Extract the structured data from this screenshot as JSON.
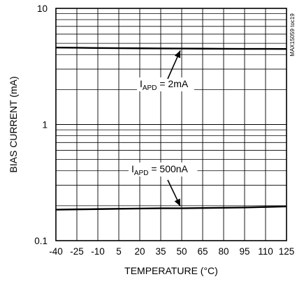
{
  "chart_data": {
    "type": "line",
    "title": "",
    "xlabel": "TEMPERATURE (°C)",
    "ylabel": "BIAS CURRENT (mA)",
    "xlim": [
      -40,
      125
    ],
    "ylim": [
      0.1,
      10
    ],
    "yscale": "log",
    "grid": true,
    "x_ticks": [
      -40,
      -25,
      -10,
      5,
      20,
      35,
      50,
      65,
      80,
      95,
      110,
      125
    ],
    "x_tick_labels": [
      "-40",
      "-25",
      "-10",
      "5",
      "20",
      "35",
      "50",
      "65",
      "80",
      "95",
      "110",
      "125"
    ],
    "y_tick_labels": [
      "0.1",
      "1",
      "10"
    ],
    "y_ticks": [
      0.1,
      1,
      10
    ],
    "series": [
      {
        "x": [
          -40,
          -25,
          -10,
          5,
          20,
          35,
          50,
          65,
          80,
          95,
          110,
          125
        ],
        "y": [
          4.6,
          4.58,
          4.56,
          4.54,
          4.53,
          4.52,
          4.51,
          4.5,
          4.49,
          4.48,
          4.48,
          4.47
        ]
      },
      {
        "x": [
          -40,
          -25,
          -10,
          5,
          20,
          35,
          50,
          65,
          80,
          95,
          110,
          125
        ],
        "y": [
          0.185,
          0.186,
          0.187,
          0.188,
          0.189,
          0.19,
          0.19,
          0.191,
          0.192,
          0.193,
          0.195,
          0.197
        ]
      }
    ],
    "annotations": [
      {
        "text_main": "I",
        "text_sub": "APD",
        "text_rest": " = 2mA",
        "target_x": 50,
        "target_y": 4.52
      },
      {
        "text_main": "I",
        "text_sub": "APD",
        "text_rest": " = 500nA",
        "target_x": 50,
        "target_y": 0.19
      }
    ],
    "watermark": "MAX15059 toc19"
  }
}
